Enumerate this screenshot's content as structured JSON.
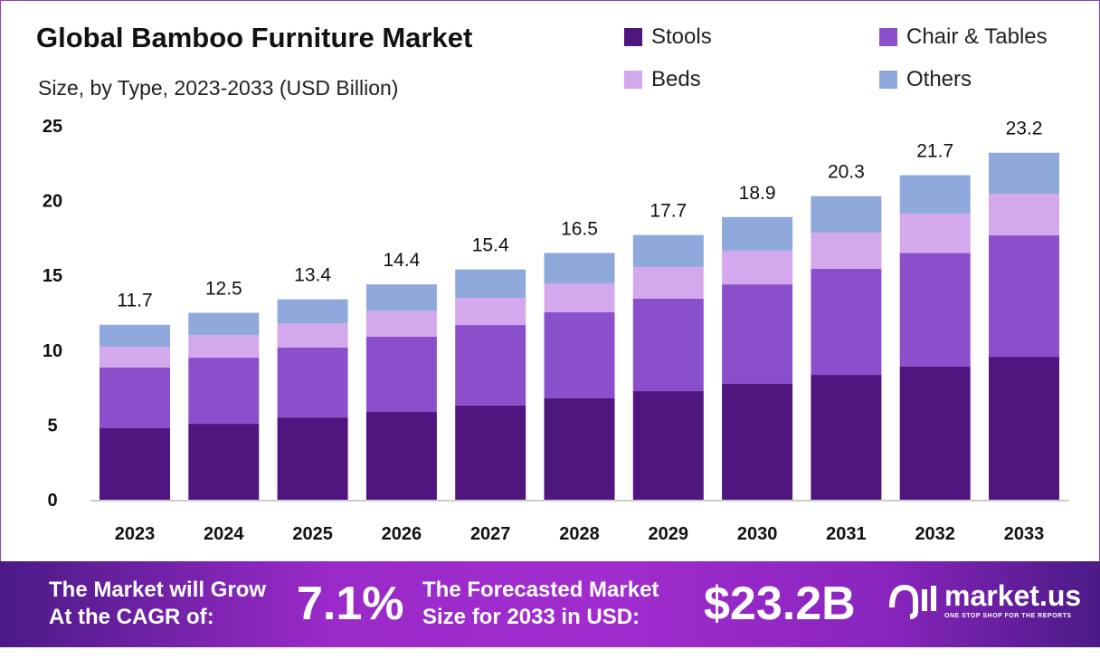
{
  "chart_data": {
    "type": "bar",
    "stacked": true,
    "title": "Global Bamboo Furniture Market",
    "subtitle": "Size, by Type, 2023-2033 (USD Billion)",
    "categories": [
      "2023",
      "2024",
      "2025",
      "2026",
      "2027",
      "2028",
      "2029",
      "2030",
      "2031",
      "2032",
      "2033"
    ],
    "series": [
      {
        "name": "Stools",
        "color": "#4e167e",
        "values": [
          4.78,
          5.08,
          5.5,
          5.87,
          6.3,
          6.78,
          7.26,
          7.75,
          8.35,
          8.9,
          9.56
        ]
      },
      {
        "name": "Chair & Tables",
        "color": "#8c4fcc",
        "values": [
          4.06,
          4.42,
          4.67,
          5.03,
          5.38,
          5.75,
          6.18,
          6.65,
          7.09,
          7.6,
          8.12
        ]
      },
      {
        "name": "Beds",
        "color": "#d4a8ec",
        "values": [
          1.39,
          1.5,
          1.63,
          1.75,
          1.82,
          1.94,
          2.12,
          2.25,
          2.42,
          2.63,
          2.78
        ]
      },
      {
        "name": "Others",
        "color": "#8fa9dc",
        "values": [
          1.47,
          1.5,
          1.6,
          1.75,
          1.9,
          2.03,
          2.14,
          2.25,
          2.44,
          2.57,
          2.74
        ]
      }
    ],
    "totals": [
      "11.7",
      "12.5",
      "13.4",
      "14.4",
      "15.4",
      "16.5",
      "17.7",
      "18.9",
      "20.3",
      "21.7",
      "23.2"
    ],
    "yticks": [
      "0",
      "5",
      "10",
      "15",
      "20",
      "25"
    ],
    "ylim": [
      0,
      25
    ],
    "grid": false,
    "legend": "top-right"
  },
  "footer": {
    "cagr_text_1": "The Market will Grow",
    "cagr_text_2": "At the CAGR of:",
    "cagr_value": "7.1%",
    "forecast_text_1": "The Forecasted Market",
    "forecast_text_2": "Size for 2033 in USD:",
    "forecast_value": "$23.2B",
    "logo_name": "market.us",
    "logo_tagline": "ONE STOP SHOP FOR THE REPORTS"
  }
}
